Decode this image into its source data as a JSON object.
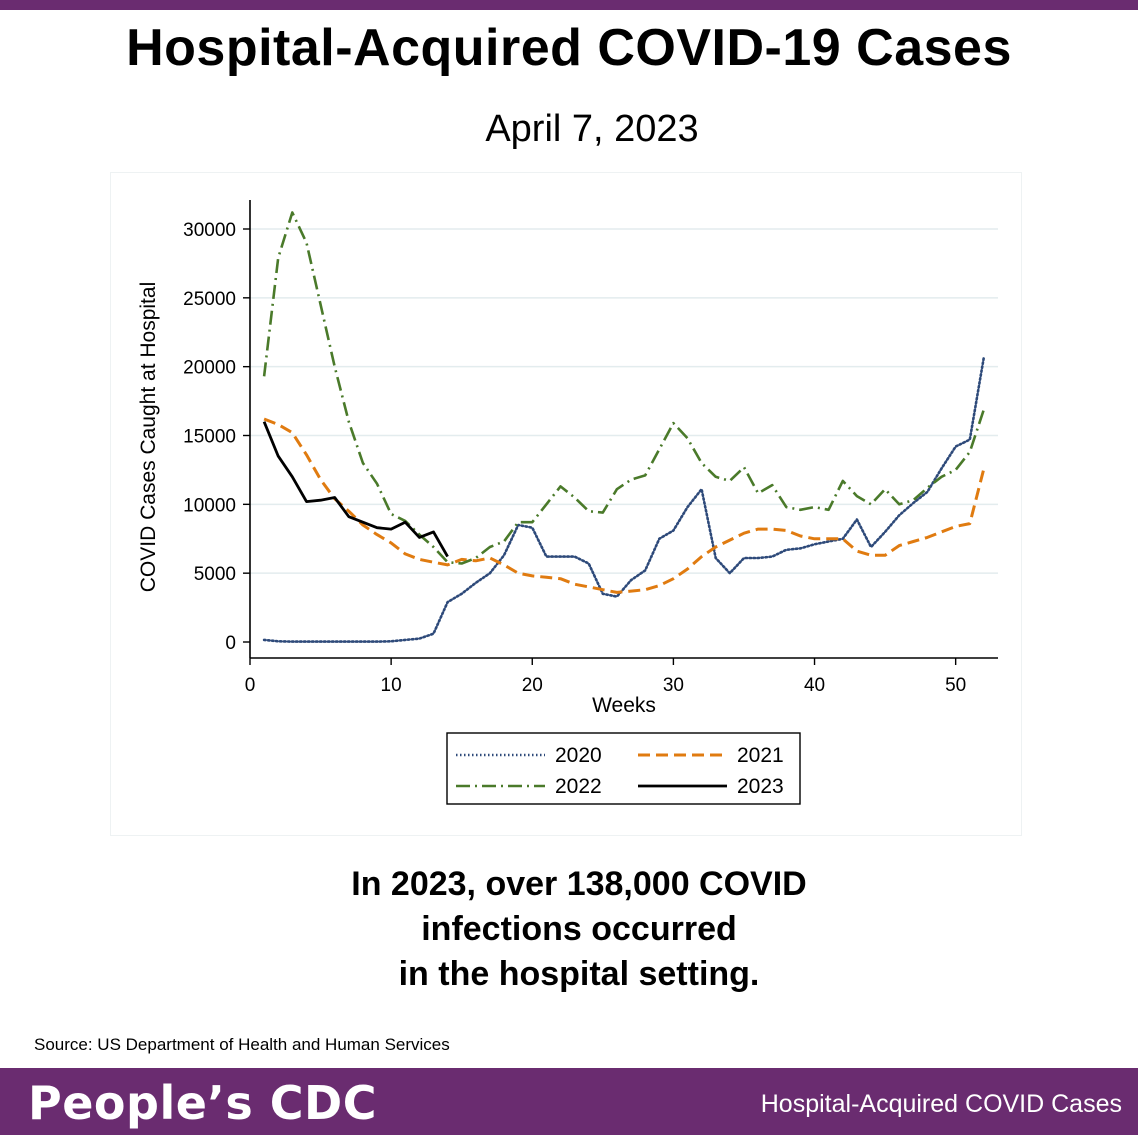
{
  "header": {
    "title": "Hospital-Acquired COVID-19 Cases",
    "date": "April 7, 2023"
  },
  "caption": {
    "lines": [
      "In 2023, over 138,000 COVID",
      "infections occurred",
      "in the hospital setting."
    ]
  },
  "source": "Source: US Department of Health and Human Services",
  "footer": {
    "logo_text": "People’s CDC",
    "label": "Hospital-Acquired COVID Cases",
    "bar_color": "#6a2c70"
  },
  "chart_data": {
    "type": "line",
    "xlabel": "Weeks",
    "ylabel": "COVID Cases Caught at Hospital",
    "xlim": [
      0,
      53
    ],
    "ylim": [
      0,
      32000
    ],
    "xticks": [
      0,
      10,
      20,
      30,
      40,
      50
    ],
    "yticks": [
      0,
      5000,
      10000,
      15000,
      20000,
      25000,
      30000
    ],
    "grid": true,
    "legend_position": "bottom-center",
    "series": [
      {
        "name": "2020",
        "style": "dotted",
        "color": "#2e4a7a",
        "x": [
          1,
          2,
          3,
          4,
          5,
          6,
          7,
          8,
          9,
          10,
          11,
          12,
          13,
          14,
          15,
          16,
          17,
          18,
          19,
          20,
          21,
          22,
          23,
          24,
          25,
          26,
          27,
          28,
          29,
          30,
          31,
          32,
          33,
          34,
          35,
          36,
          37,
          38,
          39,
          40,
          41,
          42,
          43,
          44,
          45,
          46,
          47,
          48,
          49,
          50,
          51,
          52
        ],
        "y": [
          150,
          50,
          30,
          30,
          30,
          30,
          30,
          30,
          30,
          50,
          150,
          250,
          600,
          2900,
          3500,
          4300,
          5000,
          6300,
          8500,
          8300,
          6200,
          6200,
          6200,
          5700,
          3500,
          3300,
          4500,
          5200,
          7500,
          8100,
          9800,
          11100,
          6100,
          5000,
          6100,
          6100,
          6200,
          6700,
          6800,
          7100,
          7300,
          7500,
          8900,
          6900,
          8000,
          9200,
          10100,
          10900,
          12600,
          14200,
          14700,
          20700
        ]
      },
      {
        "name": "2021",
        "style": "dashed",
        "color": "#e07b10",
        "x": [
          1,
          2,
          3,
          4,
          5,
          6,
          7,
          8,
          9,
          10,
          11,
          12,
          13,
          14,
          15,
          16,
          17,
          18,
          19,
          20,
          21,
          22,
          23,
          24,
          25,
          26,
          27,
          28,
          29,
          30,
          31,
          32,
          33,
          34,
          35,
          36,
          37,
          38,
          39,
          40,
          41,
          42,
          43,
          44,
          45,
          46,
          47,
          48,
          49,
          50,
          51,
          52
        ],
        "y": [
          16200,
          15800,
          15200,
          13600,
          11800,
          10400,
          9500,
          8500,
          7800,
          7200,
          6400,
          6000,
          5800,
          5600,
          6000,
          5900,
          6100,
          5600,
          5000,
          4800,
          4700,
          4600,
          4200,
          4000,
          3800,
          3600,
          3700,
          3800,
          4100,
          4600,
          5300,
          6200,
          6900,
          7400,
          7900,
          8200,
          8200,
          8100,
          7700,
          7500,
          7500,
          7500,
          6600,
          6300,
          6300,
          7000,
          7300,
          7600,
          8000,
          8400,
          8600,
          12600
        ]
      },
      {
        "name": "2022",
        "style": "dashdot",
        "color": "#4a7a2a",
        "x": [
          1,
          2,
          3,
          4,
          5,
          6,
          7,
          8,
          9,
          10,
          11,
          12,
          13,
          14,
          15,
          16,
          17,
          18,
          19,
          20,
          21,
          22,
          23,
          24,
          25,
          26,
          27,
          28,
          29,
          30,
          31,
          32,
          33,
          34,
          35,
          36,
          37,
          38,
          39,
          40,
          41,
          42,
          43,
          44,
          45,
          46,
          47,
          48,
          49,
          50,
          51,
          52
        ],
        "y": [
          19300,
          27900,
          31200,
          29000,
          24500,
          20000,
          16000,
          13000,
          11500,
          9300,
          8800,
          7800,
          6900,
          5800,
          5700,
          6100,
          6900,
          7300,
          8700,
          8700,
          10000,
          11300,
          10500,
          9500,
          9400,
          11100,
          11800,
          12100,
          14000,
          15900,
          14800,
          13000,
          12000,
          11700,
          12700,
          10800,
          11400,
          9800,
          9600,
          9800,
          9600,
          11700,
          10600,
          10000,
          11100,
          10000,
          10300,
          11200,
          12000,
          12500,
          13800,
          16900
        ]
      },
      {
        "name": "2023",
        "style": "solid",
        "color": "#000000",
        "x": [
          1,
          2,
          3,
          4,
          5,
          6,
          7,
          8,
          9,
          10,
          11,
          12,
          13,
          14
        ],
        "y": [
          16000,
          13500,
          12000,
          10200,
          10300,
          10500,
          9100,
          8700,
          8300,
          8200,
          8700,
          7600,
          8000,
          6200
        ]
      }
    ]
  }
}
